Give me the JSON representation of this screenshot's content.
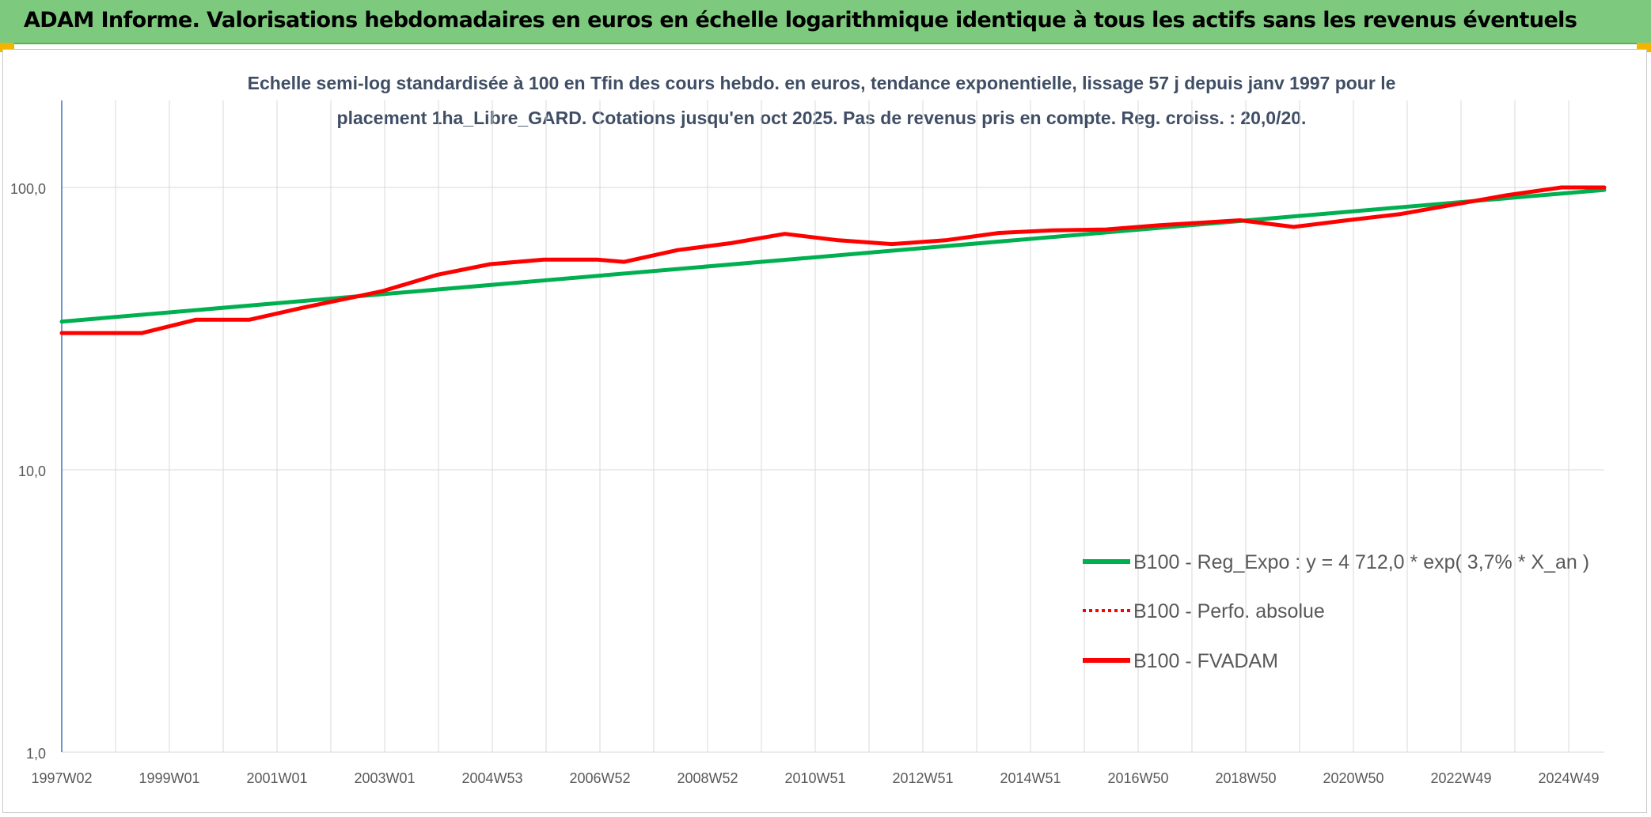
{
  "header": {
    "title": "ADAM Informe. Valorisations hebdomadaires en euros en échelle logarithmique identique à tous les actifs sans les revenus éventuels"
  },
  "colors": {
    "header_bg": "#7dc97d",
    "regression": "#00b050",
    "perf": "#ff0000",
    "fvadam": "#ff0000",
    "axis_line": "#4472c4",
    "grid": "#d9d9d9",
    "title_text": "#404e65"
  },
  "chart_data": {
    "type": "line",
    "title_line1": "Echelle semi-log standardisée à 100 en Tfin des cours hebdo. en euros, tendance exponentielle, lissage 57 j depuis janv 1997 pour le",
    "title_line2": "placement 1ha_Libre_GARD. Cotations jusqu'en oct 2025. Pas de revenus pris en compte. Reg. croiss. : 20,0/20.",
    "y_scale": "log",
    "ylim": [
      1,
      100
    ],
    "y_ticks": [
      "1,0",
      "10,0",
      "100,0"
    ],
    "x_tick_labels": [
      "1997W02",
      "1999W01",
      "2001W01",
      "2003W01",
      "2004W53",
      "2006W52",
      "2008W52",
      "2010W51",
      "2012W51",
      "2014W51",
      "2016W50",
      "2018W50",
      "2020W50",
      "2022W49",
      "2024W49"
    ],
    "x_range": [
      1997.0,
      2025.8
    ],
    "legend_position": "right-middle",
    "series": [
      {
        "name": "B100 - Reg_Expo : y = 4 712,0 * exp( 3,7% *  X_an )",
        "style": "solid-green",
        "x": [
          1997.0,
          2025.8
        ],
        "y": [
          33.5,
          98.0
        ]
      },
      {
        "name": "B100 - Perfo. absolue",
        "style": "dotted-red",
        "x": [],
        "y": []
      },
      {
        "name": "B100 - FVADAM",
        "style": "solid-red",
        "x": [
          1997.0,
          1998.0,
          1998.5,
          1999.5,
          2000.5,
          2001.5,
          2003.0,
          2004.0,
          2005.0,
          2006.0,
          2007.0,
          2007.5,
          2008.5,
          2009.5,
          2010.5,
          2011.5,
          2012.5,
          2013.5,
          2014.5,
          2015.5,
          2016.5,
          2017.5,
          2018.5,
          2019.0,
          2020.0,
          2021.0,
          2022.0,
          2023.0,
          2024.0,
          2025.0,
          2025.8
        ],
        "y": [
          30.5,
          30.5,
          30.5,
          34.0,
          34.0,
          37.5,
          43.0,
          49.0,
          53.5,
          55.5,
          55.5,
          54.5,
          60.0,
          63.5,
          68.5,
          65.0,
          63.0,
          65.0,
          69.0,
          70.5,
          71.0,
          73.5,
          75.5,
          76.5,
          72.5,
          76.5,
          80.5,
          87.0,
          94.0,
          100.0,
          100.0
        ]
      }
    ]
  }
}
